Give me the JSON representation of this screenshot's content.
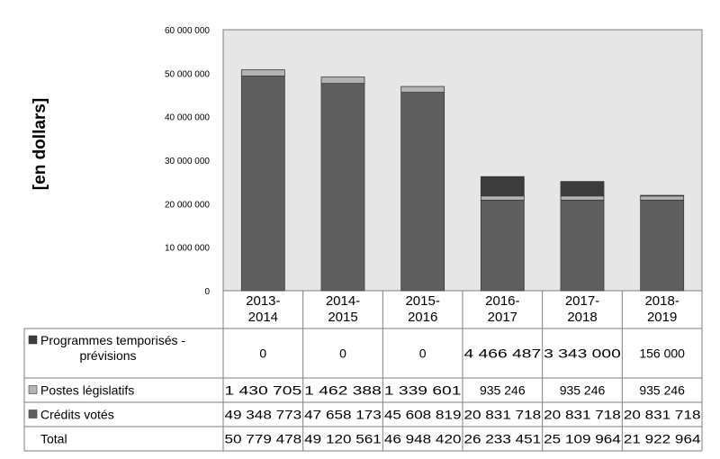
{
  "chart_data": {
    "type": "bar",
    "stacked": true,
    "ylabel": "[en dollars]",
    "ylim": [
      0,
      60000000
    ],
    "yticks": [
      0,
      10000000,
      20000000,
      30000000,
      40000000,
      50000000,
      60000000
    ],
    "ytick_labels": [
      "0",
      "10 000 000",
      "20 000 000",
      "30 000 000",
      "40 000 000",
      "50 000 000",
      "60 000 000"
    ],
    "grid": false,
    "plot_background": "#e6e6e6",
    "categories": [
      {
        "line1": "2013-",
        "line2": "2014"
      },
      {
        "line1": "2014-",
        "line2": "2015"
      },
      {
        "line1": "2015-",
        "line2": "2016"
      },
      {
        "line1": "2016-",
        "line2": "2017"
      },
      {
        "line1": "2017-",
        "line2": "2018"
      },
      {
        "line1": "2018-",
        "line2": "2019"
      }
    ],
    "series": [
      {
        "name": "Crédits votés",
        "color": "#5f5f5f",
        "values": [
          49348773,
          47658173,
          45608819,
          20831718,
          20831718,
          20831718
        ],
        "labels": [
          "49 348 773",
          "47 658 173",
          "45 608 819",
          "20 831 718",
          "20 831 718",
          "20 831 718"
        ]
      },
      {
        "name": "Postes législatifs",
        "color": "#b4b4b4",
        "values": [
          1430705,
          1462388,
          1339601,
          935246,
          935246,
          935246
        ],
        "labels": [
          "1 430 705",
          "1 462 388",
          "1 339 601",
          "935 246",
          "935 246",
          "935 246"
        ]
      },
      {
        "name_line1": "Programmes temporisés -",
        "name_line2": "prévisions",
        "color": "#3c3c3c",
        "values": [
          0,
          0,
          0,
          4466487,
          3343000,
          156000
        ],
        "labels": [
          "0",
          "0",
          "0",
          "4 466 487",
          "3 343 000",
          "156 000"
        ]
      }
    ],
    "total": {
      "name": "Total",
      "values": [
        50779478,
        49120561,
        46948420,
        26233451,
        25109964,
        21922964
      ],
      "labels": [
        "50 779 478",
        "49 120 561",
        "46 948 420",
        "26 233 451",
        "25 109 964",
        "21 922 964"
      ]
    }
  }
}
